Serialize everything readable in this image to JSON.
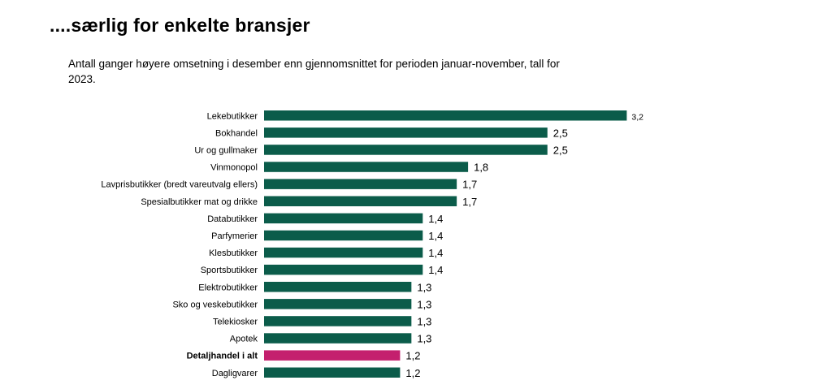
{
  "title": "....særlig for enkelte bransjer",
  "subtitle": "Antall ganger høyere omsetning i desember enn gjennomsnittet for perioden januar-november, tall for 2023.",
  "colors": {
    "bar": "#0b5c4a",
    "highlight": "#c4206e"
  },
  "chart_data": {
    "type": "bar",
    "orientation": "horizontal",
    "title": "",
    "xlabel": "",
    "ylabel": "",
    "xlim": [
      0,
      3.2
    ],
    "grid": false,
    "legend": "none",
    "highlight_category": "Detaljhandel i alt",
    "categories": [
      "Lekebutikker",
      "Bokhandel",
      "Ur og gullmaker",
      "Vinmonopol",
      "Lavprisbutikker (bredt vareutvalg ellers)",
      "Spesialbutikker mat og drikke",
      "Databutikker",
      "Parfymerier",
      "Klesbutikker",
      "Sportsbutikker",
      "Elektrobutikker",
      "Sko og veskebutikker",
      "Telekiosker",
      "Apotek",
      "Detaljhandel i alt",
      "Dagligvarer"
    ],
    "values": [
      3.2,
      2.5,
      2.5,
      1.8,
      1.7,
      1.7,
      1.4,
      1.4,
      1.4,
      1.4,
      1.3,
      1.3,
      1.3,
      1.3,
      1.2,
      1.2
    ],
    "value_labels": [
      "3,2",
      "2,5",
      "2,5",
      "1,8",
      "1,7",
      "1,7",
      "1,4",
      "1,4",
      "1,4",
      "1,4",
      "1,3",
      "1,3",
      "1,3",
      "1,3",
      "1,2",
      "1,2"
    ]
  }
}
